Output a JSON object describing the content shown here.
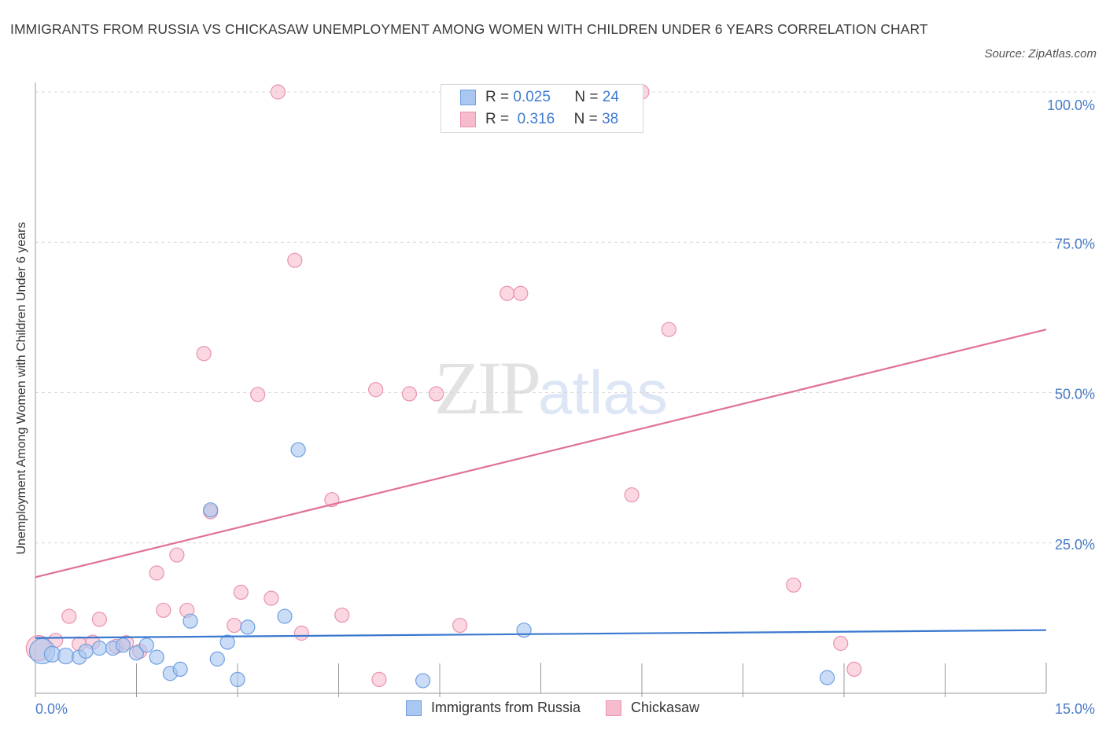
{
  "title": "IMMIGRANTS FROM RUSSIA VS CHICKASAW UNEMPLOYMENT AMONG WOMEN WITH CHILDREN UNDER 6 YEARS CORRELATION CHART",
  "source": "Source: ZipAtlas.com",
  "watermark": {
    "zip": "ZIP",
    "atlas": "atlas"
  },
  "legend": {
    "r_label": "R =",
    "n_label": "N =",
    "rows": [
      {
        "name": "Immigrants from Russia",
        "r": "0.025",
        "n": "24"
      },
      {
        "name": "Chickasaw",
        "r": "0.316",
        "n": "38"
      }
    ]
  },
  "colors": {
    "russia_fill": "#a9c7f0",
    "russia_stroke": "#6f9fe0",
    "russia_line": "#3a78d0",
    "chickasaw_fill": "#f6bccd",
    "chickasaw_stroke": "#ea93ae",
    "chickasaw_line": "#e0709a",
    "grid": "#d9d9d9",
    "axis_text": "#4a7cc9"
  },
  "chart_data": {
    "type": "scatter",
    "title": "IMMIGRANTS FROM RUSSIA VS CHICKASAW UNEMPLOYMENT AMONG WOMEN WITH CHILDREN UNDER 6 YEARS CORRELATION CHART",
    "xlabel": "",
    "ylabel": "Unemployment Among Women with Children Under 6 years",
    "xlim": [
      0,
      15
    ],
    "ylim": [
      0,
      100
    ],
    "x_tick_labels": [
      "0.0%",
      "15.0%"
    ],
    "y_ticks": [
      25,
      50,
      75,
      100
    ],
    "y_tick_labels": [
      "25.0%",
      "50.0%",
      "75.0%",
      "100.0%"
    ],
    "grid": true,
    "legend_position": "top-center",
    "series": [
      {
        "name": "Immigrants from Russia",
        "trend": [
          [
            0,
            9.2
          ],
          [
            15,
            10.5
          ]
        ],
        "points": [
          [
            0.1,
            7.0,
            16
          ],
          [
            0.25,
            6.5,
            10
          ],
          [
            0.45,
            6.2,
            10
          ],
          [
            0.65,
            6.0,
            9
          ],
          [
            0.75,
            7.0,
            9
          ],
          [
            0.95,
            7.5,
            9
          ],
          [
            1.15,
            7.5,
            9
          ],
          [
            1.3,
            8.0,
            9
          ],
          [
            1.5,
            6.7,
            9
          ],
          [
            1.65,
            8.0,
            9
          ],
          [
            1.8,
            6.0,
            9
          ],
          [
            2.0,
            3.3,
            9
          ],
          [
            2.15,
            4.0,
            9
          ],
          [
            2.3,
            12.0,
            9
          ],
          [
            2.6,
            30.5,
            9
          ],
          [
            2.7,
            5.7,
            9
          ],
          [
            2.85,
            8.5,
            9
          ],
          [
            3.0,
            2.3,
            9
          ],
          [
            3.15,
            11.0,
            9
          ],
          [
            3.7,
            12.8,
            9
          ],
          [
            3.9,
            40.5,
            9
          ],
          [
            5.75,
            2.1,
            9
          ],
          [
            7.25,
            10.5,
            9
          ],
          [
            11.75,
            2.6,
            9
          ]
        ]
      },
      {
        "name": "Chickasaw",
        "trend": [
          [
            0,
            19.3
          ],
          [
            15,
            60.5
          ]
        ],
        "points": [
          [
            0.05,
            7.5,
            16
          ],
          [
            0.3,
            8.8,
            9
          ],
          [
            0.5,
            12.8,
            9
          ],
          [
            0.65,
            8.2,
            9
          ],
          [
            0.85,
            8.5,
            9
          ],
          [
            0.95,
            12.3,
            9
          ],
          [
            1.2,
            7.8,
            9
          ],
          [
            1.35,
            8.4,
            9
          ],
          [
            1.55,
            7.0,
            9
          ],
          [
            1.8,
            20.0,
            9
          ],
          [
            1.9,
            13.8,
            9
          ],
          [
            2.1,
            23.0,
            9
          ],
          [
            2.25,
            13.8,
            9
          ],
          [
            2.5,
            56.5,
            9
          ],
          [
            2.6,
            30.2,
            9
          ],
          [
            2.95,
            11.3,
            9
          ],
          [
            3.05,
            16.8,
            9
          ],
          [
            3.3,
            49.7,
            9
          ],
          [
            3.5,
            15.8,
            9
          ],
          [
            3.6,
            100,
            9
          ],
          [
            3.85,
            72.0,
            9
          ],
          [
            3.95,
            10.0,
            9
          ],
          [
            4.4,
            32.2,
            9
          ],
          [
            4.55,
            13.0,
            9
          ],
          [
            5.05,
            50.5,
            9
          ],
          [
            5.1,
            2.3,
            9
          ],
          [
            5.55,
            49.8,
            9
          ],
          [
            5.95,
            49.8,
            9
          ],
          [
            6.3,
            11.3,
            9
          ],
          [
            6.7,
            100,
            9
          ],
          [
            7.0,
            66.5,
            9
          ],
          [
            7.2,
            66.5,
            9
          ],
          [
            8.85,
            33.0,
            9
          ],
          [
            9.0,
            100,
            9
          ],
          [
            9.4,
            60.5,
            9
          ],
          [
            11.25,
            18.0,
            9
          ],
          [
            11.95,
            8.3,
            9
          ],
          [
            12.15,
            4.0,
            9
          ]
        ]
      }
    ]
  }
}
